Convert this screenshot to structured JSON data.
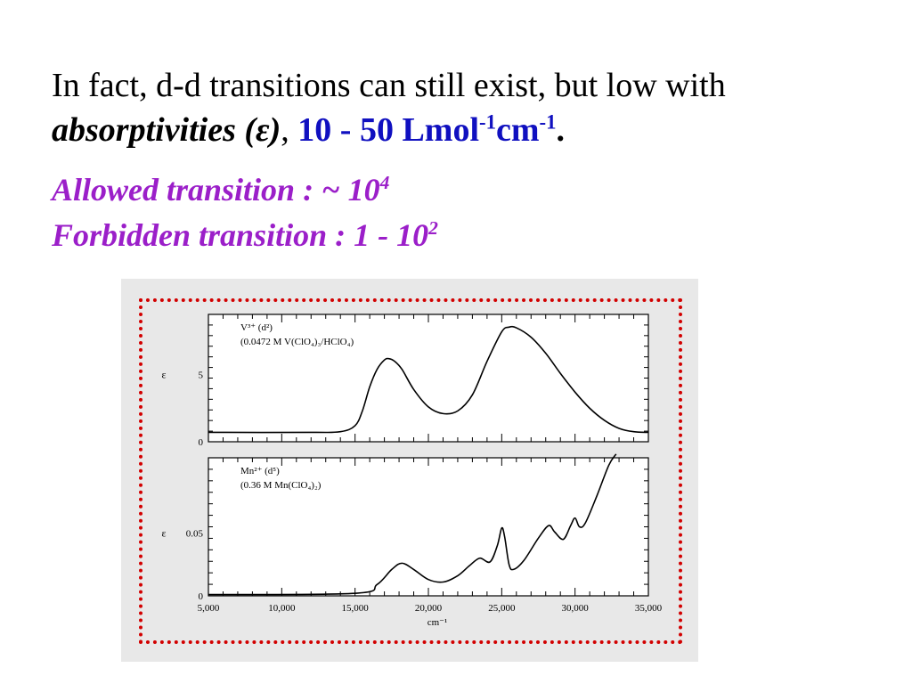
{
  "slide": {
    "line1": "In fact, d-d transitions can still exist, but low with",
    "line2_term": "absorptivities (",
    "line2_symbol": "ε",
    "line2_close": ")",
    "line2_comma": ",",
    "line2_value": "10 - 50 Lmol",
    "line2_exp1": "-1",
    "line2_unit2": "cm",
    "line2_exp2": "-1",
    "line2_period": ".",
    "allowed_label": "Allowed transition : ~ 10",
    "allowed_exp": "4",
    "forbidden_label": "Forbidden transition : 1 - 10",
    "forbidden_exp": "2"
  },
  "colors": {
    "text": "#000000",
    "blue_value": "#1010c0",
    "purple": "#9b1fc9",
    "frame_border": "#d20000",
    "figure_bg": "#e8e8e8"
  },
  "chart_data": [
    {
      "type": "line",
      "panel": "top",
      "label_line1": "V³⁺ (d²)",
      "label_line2": "(0.0472 M V(ClO₄)₃/HClO₄)",
      "ylabel": "ε",
      "yticks": [
        0,
        5
      ],
      "ylim": [
        0,
        9.5
      ],
      "xlim": [
        5000,
        35000
      ],
      "x": [
        5000,
        12000,
        14000,
        15000,
        15500,
        16000,
        16500,
        17000,
        17300,
        17700,
        18200,
        19000,
        20000,
        21000,
        22000,
        23000,
        24000,
        25000,
        25500,
        26000,
        27000,
        28000,
        29000,
        30000,
        31000,
        32000,
        33000,
        34000,
        35000
      ],
      "y": [
        0.7,
        0.7,
        0.75,
        1.2,
        2.3,
        4.1,
        5.4,
        6.1,
        6.2,
        6.0,
        5.4,
        3.9,
        2.6,
        2.1,
        2.3,
        3.5,
        6.0,
        8.2,
        8.55,
        8.5,
        7.8,
        6.6,
        5.1,
        3.7,
        2.5,
        1.6,
        1.0,
        0.75,
        0.7
      ],
      "grid": false
    },
    {
      "type": "line",
      "panel": "bottom",
      "label_line1": "Mn²⁺ (d⁵)",
      "label_line2": "(0.36 M Mn(ClO₄)₂)",
      "ylabel": "ε",
      "yticks": [
        0,
        0.05
      ],
      "ylim": [
        0,
        0.11
      ],
      "xlim": [
        5000,
        35000
      ],
      "xlabel": "cm⁻¹",
      "xticks": [
        "5,000",
        "10,000",
        "15,000",
        "20,000",
        "25,000",
        "30,000",
        "35,000"
      ],
      "x": [
        5000,
        15000,
        16500,
        17500,
        18200,
        19000,
        20000,
        21000,
        22000,
        22800,
        23500,
        24200,
        24700,
        25000,
        25200,
        25500,
        25800,
        26500,
        27500,
        28200,
        28600,
        29200,
        29700,
        30000,
        30300,
        30700,
        31500,
        32300,
        32800
      ],
      "y": [
        0.001,
        0.002,
        0.009,
        0.021,
        0.026,
        0.021,
        0.013,
        0.011,
        0.016,
        0.024,
        0.03,
        0.027,
        0.04,
        0.054,
        0.047,
        0.025,
        0.021,
        0.028,
        0.046,
        0.056,
        0.051,
        0.045,
        0.056,
        0.062,
        0.055,
        0.058,
        0.08,
        0.104,
        0.113
      ],
      "grid": false
    }
  ]
}
